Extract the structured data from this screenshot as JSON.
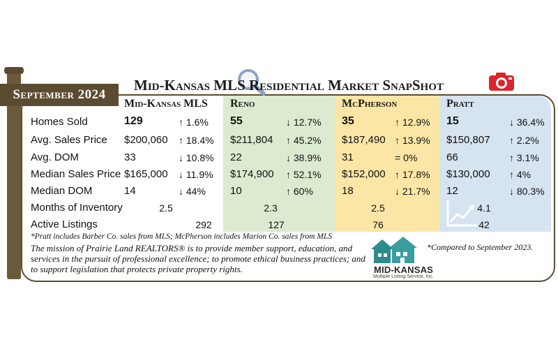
{
  "month_label": "September 2024",
  "title": "Mid-Kansas MLS Residential Market SnapShot",
  "columns": [
    {
      "name": "Mid-Kansas MLS"
    },
    {
      "name": "Reno"
    },
    {
      "name": "McPherson"
    },
    {
      "name": "Pratt"
    }
  ],
  "row_labels": [
    "Homes Sold",
    "Avg. Sales Price",
    "Avg. DOM",
    "Median Sales Price",
    "Median DOM",
    "Months of Inventory",
    "Active Listings"
  ],
  "data": {
    "mk": {
      "homes_sold": "129",
      "homes_sold_chg": "↑ 1.6%",
      "avg_price": "$200,060",
      "avg_price_chg": "↑ 18.4%",
      "avg_dom": "33",
      "avg_dom_chg": "↓ 10.8%",
      "median_price": "$165,000",
      "median_price_chg": "↓ 11.9%",
      "median_dom": "14",
      "median_dom_chg": "↓ 44%",
      "months_inventory": "2.5",
      "active_listings": "292"
    },
    "reno": {
      "homes_sold": "55",
      "homes_sold_chg": "↓ 12.7%",
      "avg_price": "$211,804",
      "avg_price_chg": "↑ 45.2%",
      "avg_dom": "22",
      "avg_dom_chg": "↓ 38.9%",
      "median_price": "$174,900",
      "median_price_chg": "↑ 52.1%",
      "median_dom": "10",
      "median_dom_chg": "↑ 60%",
      "months_inventory": "2.3",
      "active_listings": "127"
    },
    "mcp": {
      "homes_sold": "35",
      "homes_sold_chg": "↑ 12.9%",
      "avg_price": "$187,490",
      "avg_price_chg": "↑ 13.9%",
      "avg_dom": "31",
      "avg_dom_chg": "= 0%",
      "median_price": "$152,000",
      "median_price_chg": "↑ 17.8%",
      "median_dom": "18",
      "median_dom_chg": "↓ 21.7%",
      "months_inventory": "2.5",
      "active_listings": "76"
    },
    "pratt": {
      "homes_sold": "15",
      "homes_sold_chg": "↓ 36.4%",
      "avg_price": "$150,807",
      "avg_price_chg": "↑ 2.2%",
      "avg_dom": "66",
      "avg_dom_chg": "↑ 3.1%",
      "median_price": "$130,000",
      "median_price_chg": "↑ 4%",
      "median_dom": "12",
      "median_dom_chg": "↓ 80.3%",
      "months_inventory": "4.1",
      "active_listings": "42"
    }
  },
  "footnote": "*Pratt includes Barber Co. sales from MLS; McPherson includes Marion Co. sales from MLS",
  "mission": "The mission of Prairie Land REALTORS® is to provide member support, education, and services in the pursuit of professional excellence; to promote ethical business practices; and to support legislation that protects private property rights.",
  "compared_note": "*Compared to September 2023.",
  "logo": {
    "name": "MID-KANSAS",
    "subtitle": "Multiple Listing Service, Inc."
  },
  "icons": [
    "magnifier-icon",
    "camera-icon",
    "trend-chart-icon",
    "houses-logo-icon"
  ],
  "colors": {
    "frame": "#5b4b30",
    "reno_bg": "#dcebd0",
    "mcpherson_bg": "#fbe6a5",
    "pratt_bg": "#d6e3f0",
    "camera_red": "#d9262c",
    "logo_teal": "#2b8c8c"
  }
}
